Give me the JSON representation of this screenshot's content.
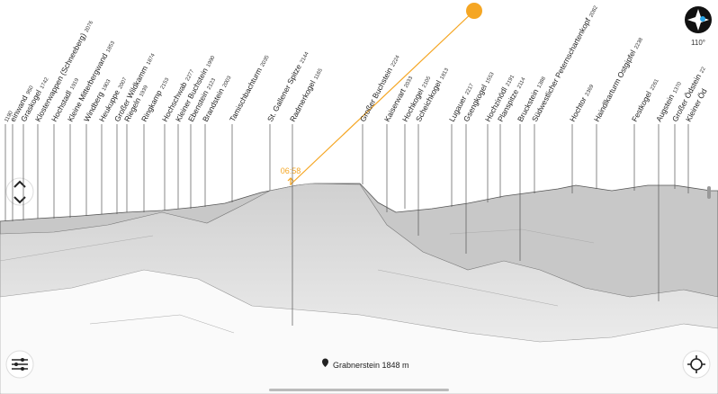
{
  "time": "06:58",
  "compass": "110°",
  "location": "Grabnerstein 1848 m",
  "peaks": [
    {
      "elevation": 1190
    },
    {
      "name": "einwand",
      "elevation": 950
    },
    {
      "name": "Graskogel",
      "elevation": 1742
    },
    {
      "name": "Klosterwappen (Schneeberg)",
      "elevation": 2076
    },
    {
      "name": "Hochstadl",
      "elevation": 1919
    },
    {
      "name": "Kleine Mitterbergwand",
      "elevation": 1853
    },
    {
      "name": "Windberg",
      "elevation": 1903
    },
    {
      "name": "Heukuppe",
      "elevation": 2007
    },
    {
      "name": "Großer Wildkamm",
      "elevation": 1874
    },
    {
      "name": "Riegeln",
      "elevation": 1939
    },
    {
      "name": "Ringkamp",
      "elevation": 2153
    },
    {
      "name": "Hochschwab",
      "elevation": 2277
    },
    {
      "name": "Kleiner Buchstein",
      "elevation": 1990
    },
    {
      "name": "Ebenstein",
      "elevation": 2123
    },
    {
      "name": "Brandstein",
      "elevation": 2003
    },
    {
      "name": "Tamischbachturm",
      "elevation": 2035
    },
    {
      "name": "St. Gallener Spitze",
      "elevation": 2144
    },
    {
      "name": "Radmerkogel",
      "elevation": 1165
    },
    {
      "name": "Großer Buchstein",
      "elevation": 2224
    },
    {
      "name": "Kaiserwart",
      "elevation": 2033
    },
    {
      "name": "Hochkogel",
      "elevation": 2105
    },
    {
      "name": "Scheichkogel",
      "elevation": 1813
    },
    {
      "name": "Lugauer",
      "elevation": 2217
    },
    {
      "name": "Gsengkogel",
      "elevation": 1553
    },
    {
      "name": "Hochzinödl",
      "elevation": 2191
    },
    {
      "name": "Planspitze",
      "elevation": 2114
    },
    {
      "name": "Bruckstein",
      "elevation": 1388
    },
    {
      "name": "Südwestlicher Peternschartenkopf",
      "elevation": 2082
    },
    {
      "name": "Hochtor",
      "elevation": 2369
    },
    {
      "name": "Haindlkarturm Ostgipfel",
      "elevation": 2238
    },
    {
      "name": "Festkogel",
      "elevation": 2261
    },
    {
      "name": "Augstein",
      "elevation": 1370
    },
    {
      "name": "Großer Ödstein",
      "elevation": 22
    },
    {
      "name": "Kleiner Öd"
    }
  ]
}
